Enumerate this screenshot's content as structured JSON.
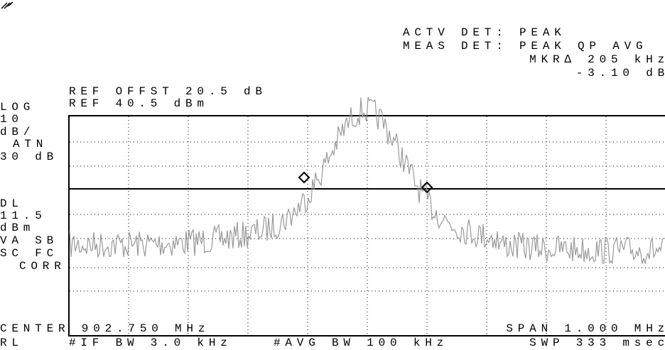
{
  "header": {
    "actv_det": "ACTV DET: PEAK",
    "meas_det": "MEAS DET: PEAK QP AVG",
    "marker_freq": "MKR∆ 205 kHz",
    "marker_level": "-3.10 dB"
  },
  "reference": {
    "offset": "REF OFFST 20.5 dB",
    "level": "REF 40.5 dBm"
  },
  "side_labels": [
    "LOG",
    "10",
    "dB/",
    "ATN",
    "30 dB",
    "DL",
    "11.5",
    "dBm",
    "VA SB",
    "SC FC",
    "CORR"
  ],
  "footer": {
    "center": "CENTER 902.750 MHz",
    "span": "SPAN 1.000 MHz",
    "rl": "RL",
    "if_bw": "#IF BW 3.0 kHz",
    "avg_bw": "#AVG BW 100 kHz",
    "sweep": "SWP 333 msec"
  }
}
